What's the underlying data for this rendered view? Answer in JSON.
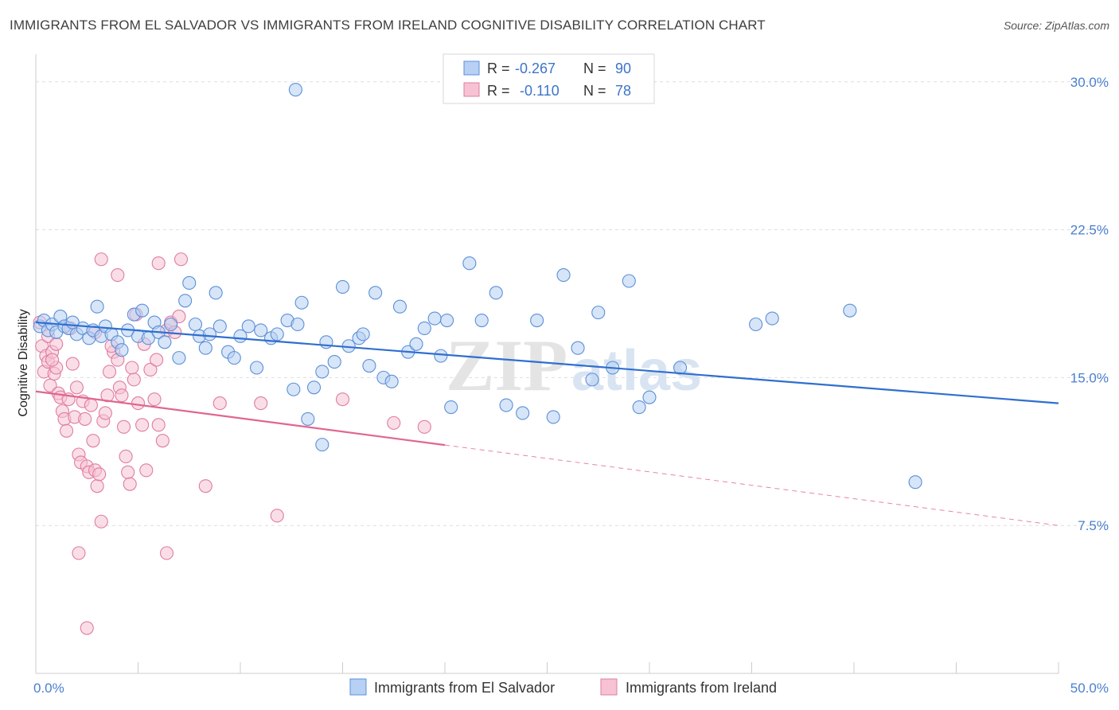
{
  "title": "IMMIGRANTS FROM EL SALVADOR VS IMMIGRANTS FROM IRELAND COGNITIVE DISABILITY CORRELATION CHART",
  "source": "Source: ZipAtlas.com",
  "watermark": {
    "zip": "ZIP",
    "atlas": "atlas"
  },
  "colors": {
    "blue": "#5b8fd9",
    "blue_fill": "#b7d0f3",
    "blue_line": "#2f6fcf",
    "pink": "#e07ca0",
    "pink_fill": "#f6c2d4",
    "pink_line": "#e06690",
    "tick": "#4a7fd0",
    "grid": "#dddddd"
  },
  "legend": {
    "rows": [
      {
        "r_label": "R =",
        "r_value": "-0.267",
        "n_label": "N =",
        "n_value": "90"
      },
      {
        "r_label": "R =",
        "r_value": "-0.110",
        "n_label": "N =",
        "n_value": "78"
      }
    ]
  },
  "chart_data": {
    "type": "scatter",
    "title": "IMMIGRANTS FROM EL SALVADOR VS IMMIGRANTS FROM IRELAND COGNITIVE DISABILITY CORRELATION CHART",
    "xlabel": "",
    "ylabel": "Cognitive Disability",
    "xlim": [
      0,
      50
    ],
    "ylim": [
      0,
      31
    ],
    "x_tick_labels": [
      "0.0%",
      "50.0%"
    ],
    "y_ticks": [
      7.5,
      15.0,
      22.5,
      30.0
    ],
    "y_tick_labels": [
      "7.5%",
      "15.0%",
      "22.5%",
      "30.0%"
    ],
    "grid": true,
    "legend_position": "top-center",
    "series": [
      {
        "name": "Immigrants from El Salvador",
        "r": -0.267,
        "n": 90,
        "trend": {
          "x0": 0,
          "y0": 17.8,
          "x1": 50,
          "y1": 13.7,
          "style": "solid"
        },
        "points": [
          [
            0.2,
            17.6
          ],
          [
            0.4,
            17.9
          ],
          [
            0.6,
            17.4
          ],
          [
            0.8,
            17.7
          ],
          [
            1.0,
            17.3
          ],
          [
            1.2,
            18.1
          ],
          [
            1.4,
            17.6
          ],
          [
            1.6,
            17.5
          ],
          [
            1.8,
            17.8
          ],
          [
            2.0,
            17.2
          ],
          [
            2.3,
            17.5
          ],
          [
            2.6,
            17.0
          ],
          [
            2.8,
            17.4
          ],
          [
            3.0,
            18.6
          ],
          [
            3.2,
            17.1
          ],
          [
            3.4,
            17.6
          ],
          [
            3.7,
            17.2
          ],
          [
            4.0,
            16.8
          ],
          [
            4.2,
            16.4
          ],
          [
            4.5,
            17.4
          ],
          [
            4.8,
            18.2
          ],
          [
            5.0,
            17.1
          ],
          [
            5.2,
            18.4
          ],
          [
            5.5,
            17.0
          ],
          [
            5.8,
            17.8
          ],
          [
            6.0,
            17.3
          ],
          [
            6.3,
            16.8
          ],
          [
            6.6,
            17.7
          ],
          [
            7.0,
            16.0
          ],
          [
            7.3,
            18.9
          ],
          [
            7.5,
            19.8
          ],
          [
            7.8,
            17.7
          ],
          [
            8.0,
            17.1
          ],
          [
            8.3,
            16.5
          ],
          [
            8.5,
            17.2
          ],
          [
            8.8,
            19.3
          ],
          [
            9.0,
            17.6
          ],
          [
            9.4,
            16.3
          ],
          [
            9.7,
            16.0
          ],
          [
            10.0,
            17.1
          ],
          [
            10.4,
            17.6
          ],
          [
            10.8,
            15.5
          ],
          [
            11.0,
            17.4
          ],
          [
            11.5,
            17.0
          ],
          [
            11.8,
            17.2
          ],
          [
            12.3,
            17.9
          ],
          [
            12.6,
            14.4
          ],
          [
            12.8,
            17.7
          ],
          [
            13.0,
            18.8
          ],
          [
            13.3,
            12.9
          ],
          [
            13.6,
            14.5
          ],
          [
            14.0,
            15.3
          ],
          [
            14.2,
            16.8
          ],
          [
            14.6,
            15.8
          ],
          [
            15.0,
            19.6
          ],
          [
            15.3,
            16.6
          ],
          [
            15.8,
            17.0
          ],
          [
            16.0,
            17.2
          ],
          [
            16.3,
            15.6
          ],
          [
            16.6,
            19.3
          ],
          [
            17.0,
            15.0
          ],
          [
            17.4,
            14.8
          ],
          [
            17.8,
            18.6
          ],
          [
            18.2,
            16.3
          ],
          [
            18.6,
            16.7
          ],
          [
            19.0,
            17.5
          ],
          [
            19.5,
            18.0
          ],
          [
            19.8,
            16.1
          ],
          [
            20.1,
            17.9
          ],
          [
            20.3,
            13.5
          ],
          [
            21.2,
            20.8
          ],
          [
            21.8,
            17.9
          ],
          [
            22.5,
            19.3
          ],
          [
            23.0,
            13.6
          ],
          [
            23.8,
            13.2
          ],
          [
            24.5,
            17.9
          ],
          [
            25.3,
            13.0
          ],
          [
            25.8,
            20.2
          ],
          [
            26.5,
            16.5
          ],
          [
            27.2,
            14.9
          ],
          [
            27.5,
            18.3
          ],
          [
            28.2,
            15.5
          ],
          [
            29.0,
            19.9
          ],
          [
            29.5,
            13.5
          ],
          [
            30.0,
            14.0
          ],
          [
            31.5,
            15.5
          ],
          [
            35.2,
            17.7
          ],
          [
            36.0,
            18.0
          ],
          [
            39.8,
            18.4
          ],
          [
            43.0,
            9.7
          ],
          [
            12.7,
            29.6
          ],
          [
            14.0,
            11.6
          ]
        ]
      },
      {
        "name": "Immigrants from Ireland",
        "r": -0.11,
        "n": 78,
        "trend": {
          "x0": 0,
          "y0": 14.3,
          "x1": 50,
          "y1": 7.5,
          "solid_until_x": 20.0,
          "style": "solid-then-dashed"
        },
        "points": [
          [
            0.2,
            17.8
          ],
          [
            0.3,
            16.6
          ],
          [
            0.4,
            15.3
          ],
          [
            0.5,
            16.1
          ],
          [
            0.6,
            15.8
          ],
          [
            0.7,
            14.6
          ],
          [
            0.8,
            16.3
          ],
          [
            0.9,
            15.2
          ],
          [
            1.0,
            15.5
          ],
          [
            1.1,
            14.2
          ],
          [
            1.2,
            14.0
          ],
          [
            1.3,
            13.3
          ],
          [
            1.4,
            12.9
          ],
          [
            1.5,
            12.3
          ],
          [
            1.6,
            13.9
          ],
          [
            1.8,
            15.7
          ],
          [
            1.9,
            13.0
          ],
          [
            2.0,
            14.5
          ],
          [
            2.1,
            11.1
          ],
          [
            2.2,
            10.7
          ],
          [
            2.3,
            13.8
          ],
          [
            2.4,
            12.9
          ],
          [
            2.5,
            10.5
          ],
          [
            2.6,
            10.2
          ],
          [
            2.7,
            13.6
          ],
          [
            2.8,
            11.8
          ],
          [
            2.9,
            10.3
          ],
          [
            3.0,
            9.5
          ],
          [
            3.1,
            10.1
          ],
          [
            3.2,
            7.7
          ],
          [
            3.3,
            12.8
          ],
          [
            3.4,
            13.2
          ],
          [
            3.5,
            14.1
          ],
          [
            3.6,
            15.3
          ],
          [
            3.8,
            16.3
          ],
          [
            4.0,
            15.9
          ],
          [
            4.1,
            14.5
          ],
          [
            4.2,
            14.1
          ],
          [
            4.3,
            12.5
          ],
          [
            4.4,
            11.0
          ],
          [
            4.5,
            10.2
          ],
          [
            4.6,
            9.6
          ],
          [
            4.7,
            15.5
          ],
          [
            4.8,
            14.9
          ],
          [
            5.0,
            13.7
          ],
          [
            5.2,
            12.6
          ],
          [
            5.4,
            10.3
          ],
          [
            5.6,
            15.4
          ],
          [
            5.8,
            13.9
          ],
          [
            6.0,
            12.6
          ],
          [
            6.2,
            11.8
          ],
          [
            6.4,
            17.4
          ],
          [
            6.6,
            17.8
          ],
          [
            6.8,
            17.3
          ],
          [
            7.0,
            18.1
          ],
          [
            3.2,
            21.0
          ],
          [
            4.0,
            20.2
          ],
          [
            6.0,
            20.8
          ],
          [
            7.1,
            21.0
          ],
          [
            2.1,
            6.1
          ],
          [
            6.4,
            6.1
          ],
          [
            2.5,
            2.3
          ],
          [
            8.3,
            9.5
          ],
          [
            9.0,
            13.7
          ],
          [
            11.0,
            13.7
          ],
          [
            11.8,
            8.0
          ],
          [
            15.0,
            13.9
          ],
          [
            17.5,
            12.7
          ],
          [
            19.0,
            12.5
          ],
          [
            0.6,
            17.1
          ],
          [
            1.0,
            16.7
          ],
          [
            1.7,
            17.5
          ],
          [
            5.3,
            16.7
          ],
          [
            5.9,
            15.9
          ],
          [
            2.9,
            17.3
          ],
          [
            3.7,
            16.6
          ],
          [
            4.9,
            18.2
          ],
          [
            0.8,
            15.9
          ]
        ]
      }
    ]
  }
}
